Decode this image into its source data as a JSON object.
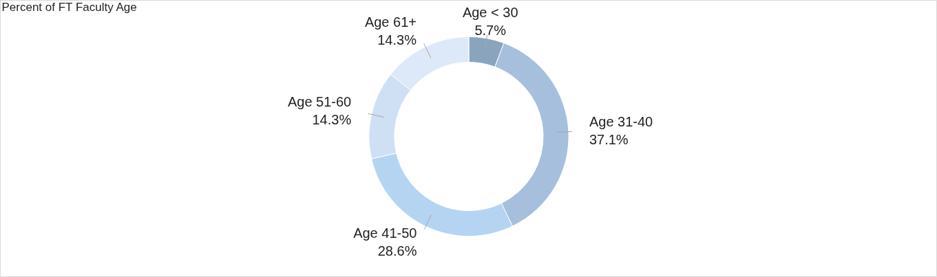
{
  "chart_data": {
    "type": "donut",
    "title": "Percent of FT Faculty Age",
    "categories": [
      "Age < 30",
      "Age 31-40",
      "Age 41-50",
      "Age 51-60",
      "Age 61+"
    ],
    "values": [
      5.7,
      37.1,
      28.6,
      14.3,
      14.3
    ],
    "colors": [
      "#8aa4be",
      "#a6bfdc",
      "#b4d4f2",
      "#cfe0f5",
      "#dde9f8"
    ],
    "value_labels": [
      "5.7%",
      "37.1%",
      "28.6%",
      "14.3%",
      "14.3%"
    ]
  }
}
